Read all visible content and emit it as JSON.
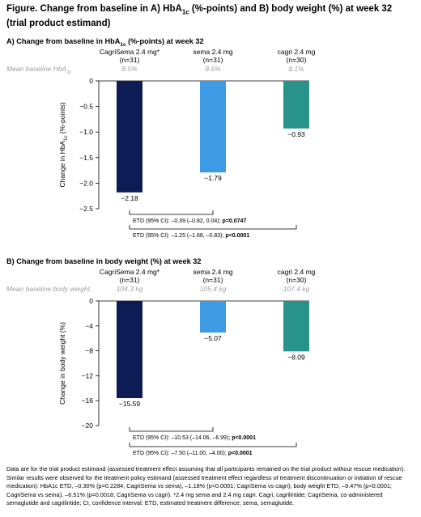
{
  "figure": {
    "title_line1": "Figure. Change from baseline in A) HbA",
    "title_sub": "1c",
    "title_line1_end": " (%-points) and B) body weight (%) at week 32",
    "title_line2": "(trial product estimand)"
  },
  "panels": [
    {
      "title": "A) Change from baseline in HbA",
      "title_sub": "1c",
      "title_end": " (%-points) at week 32",
      "baseline_label": "Mean baseline HbA",
      "baseline_label_sub": "1c",
      "etd_lines": [
        {
          "text": "ETD (95% CI): –0.39 (–0.82, 0.04); ",
          "bold": "p=0.0747",
          "from": 0,
          "to": 1
        },
        {
          "text": "ETD (95% CI): –1.25 (–1.68, –0.83); ",
          "bold": "p<0.0001",
          "from": 0,
          "to": 2
        }
      ],
      "chart_data": {
        "type": "bar",
        "categories": [
          "CagriSema 2.4 mg*\n(n=31)",
          "sema 2.4 mg\n(n=31)",
          "cagri 2.4 mg\n(n=30)"
        ],
        "category_names": [
          "CagriSema 2.4 mg*",
          "sema 2.4 mg",
          "cagri 2.4 mg"
        ],
        "category_n": [
          "(n=31)",
          "(n=31)",
          "(n=30)"
        ],
        "values": [
          -2.18,
          -1.79,
          -0.93
        ],
        "value_labels": [
          "−2.18",
          "−1.79",
          "−0.93"
        ],
        "baselines": [
          "8.5%",
          "8.6%",
          "8.1%"
        ],
        "ylabel": "Change in HbA",
        "ylabel_sub": "1c",
        "ylabel_end": " (%-points)",
        "ylim": [
          -2.5,
          0
        ],
        "yticks": [
          0,
          -0.5,
          -1.0,
          -1.5,
          -2.0,
          -2.5
        ],
        "ytick_labels": [
          "0",
          "−0.5",
          "−1.0",
          "−1.5",
          "−2.0",
          "−2.5"
        ],
        "colors": [
          "#0d1c55",
          "#3e9ae2",
          "#27938a"
        ],
        "grid": false
      }
    },
    {
      "title": "B) Change from baseline in body weight (%) at week 32",
      "title_sub": "",
      "title_end": "",
      "baseline_label": "Mean baseline body weight",
      "baseline_label_sub": "",
      "etd_lines": [
        {
          "text": "ETD (95% CI): –10.53 (–14.06, –6.99); ",
          "bold": "p<0.0001",
          "from": 0,
          "to": 1
        },
        {
          "text": "ETD (95% CI): –7.50 (–11.00, –4.00); ",
          "bold": "p<0.0001",
          "from": 0,
          "to": 2
        }
      ],
      "chart_data": {
        "type": "bar",
        "categories": [
          "CagriSema 2.4 mg*\n(n=31)",
          "sema 2.4 mg\n(n=31)",
          "cagri 2.4 mg\n(n=30)"
        ],
        "category_names": [
          "CagriSema 2.4 mg*",
          "sema 2.4 mg",
          "cagri 2.4 mg"
        ],
        "category_n": [
          "(n=31)",
          "(n=31)",
          "(n=30)"
        ],
        "values": [
          -15.59,
          -5.07,
          -8.09
        ],
        "value_labels": [
          "−15.59",
          "−5.07",
          "−8.09"
        ],
        "baselines": [
          "104.3 kg",
          "105.4 kg",
          "107.4 kg"
        ],
        "ylabel": "Change in body weight (%)",
        "ylabel_sub": "",
        "ylabel_end": "",
        "ylim": [
          -20,
          0
        ],
        "yticks": [
          0,
          -4,
          -8,
          -12,
          -16,
          -20
        ],
        "ytick_labels": [
          "0",
          "−4",
          "−8",
          "−12",
          "−16",
          "−20"
        ],
        "colors": [
          "#0d1c55",
          "#3e9ae2",
          "#27938a"
        ],
        "grid": false
      }
    }
  ],
  "footnote": "Data are for the trial product estimand (assessed treatment effect assuming that all participants remained on the trial product without rescue medication). Similar results were observed for the treatment policy estimand (assessed treatment effect regardless of treatment discontinuation or initiation of rescue medication): HbA1c ETD, –0.30% (p=0.2284; CagriSema vs sema), –1.18% (p<0.0001; CagriSema vs cagri); body weight ETD, –9.47% (p<0.0001; CagriSema vs sema), –6.51% (p=0.0018; CagriSema vs cagri). *2.4 mg sema and 2.4 mg cagri. Cagri, cagrilintide; CagriSema, co-administered semaglutide and cagrilintide; CI, confidence interval; ETD, estimated treatment difference; sema, semaglutide."
}
